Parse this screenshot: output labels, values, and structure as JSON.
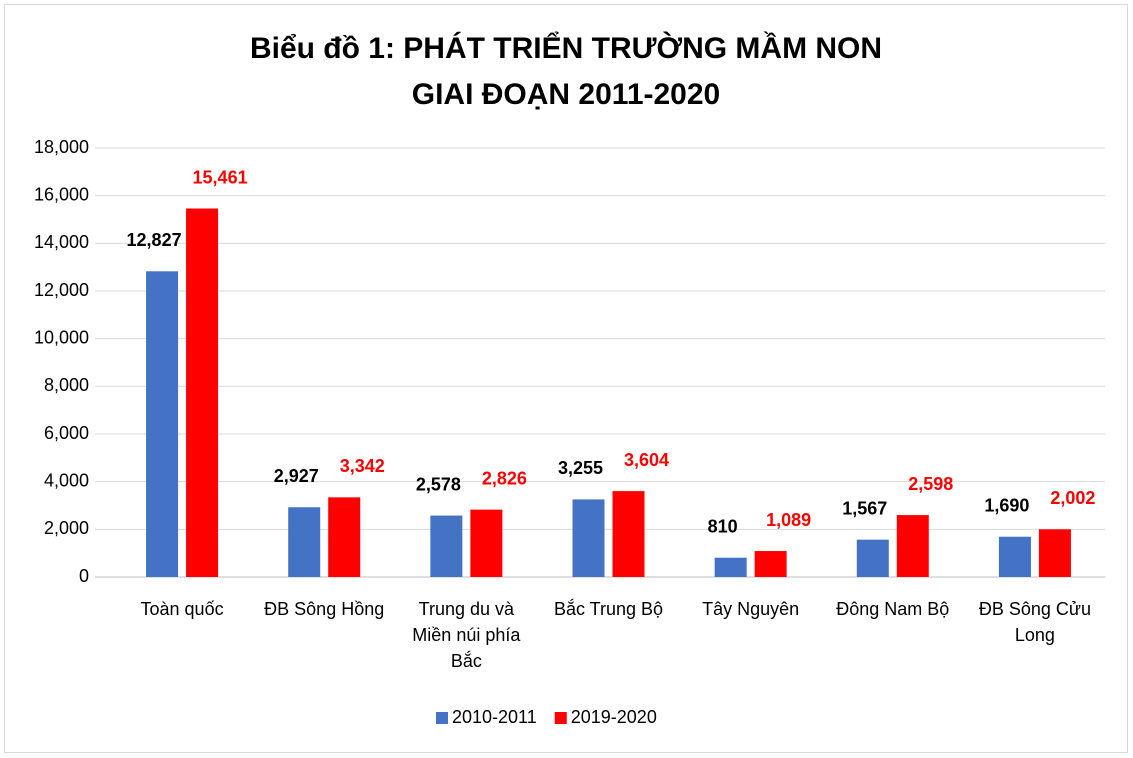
{
  "chart_data": {
    "type": "bar",
    "title": "Biểu đồ 1: PHÁT TRIỂN TRƯỜNG MẦM NON GIAI ĐOẠN 2011-2020",
    "categories": [
      "Toàn quốc",
      "ĐB Sông Hồng",
      "Trung du và Miền núi phía Bắc",
      "Bắc Trung Bộ",
      "Tây Nguyên",
      "Đông Nam Bộ",
      "ĐB Sông Cửu Long"
    ],
    "series": [
      {
        "name": "2010-2011",
        "color": "#4472c4",
        "label_color": "#000000",
        "values": [
          12827,
          2927,
          2578,
          3255,
          810,
          1567,
          1690
        ],
        "value_labels": [
          "12,827",
          "2,927",
          "2,578",
          "3,255",
          "810",
          "1,567",
          "1,690"
        ]
      },
      {
        "name": "2019-2020",
        "color": "#ff0000",
        "label_color": "#ff0000",
        "values": [
          15461,
          3342,
          2826,
          3604,
          1089,
          2598,
          2002
        ],
        "value_labels": [
          "15,461",
          "3,342",
          "2,826",
          "3,604",
          "1,089",
          "2,598",
          "2,002"
        ]
      }
    ],
    "ylim": [
      0,
      18000
    ],
    "yticks": [
      0,
      {
        "value": 2000,
        "label": "2,000"
      },
      {
        "value": 4000,
        "label": "4,000"
      },
      {
        "value": 6000,
        "label": "6,000"
      },
      {
        "value": 8000,
        "label": "8,000"
      },
      {
        "value": 10000,
        "label": "10,000"
      },
      {
        "value": 12000,
        "label": "12,000"
      },
      {
        "value": 14000,
        "label": "14,000"
      },
      {
        "value": 16000,
        "label": "16,000"
      },
      {
        "value": 18000,
        "label": "18,000"
      }
    ],
    "grid": true,
    "legend": "bottom"
  }
}
